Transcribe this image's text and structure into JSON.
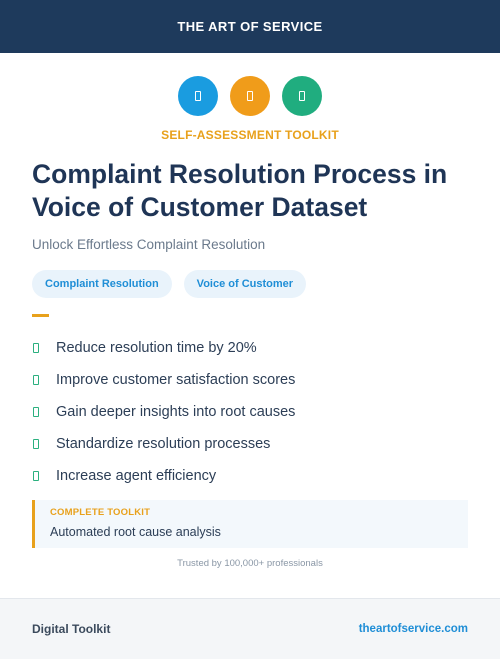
{
  "header": {
    "brand": "THE ART OF SERVICE"
  },
  "icons": [
    {
      "name": "document-icon",
      "color": "#1a9ce0"
    },
    {
      "name": "document-icon",
      "color": "#f09c1a"
    },
    {
      "name": "document-icon",
      "color": "#20ad7f"
    }
  ],
  "eyebrow": "SELF-ASSESSMENT TOOLKIT",
  "title": "Complaint Resolution Process in Voice of Customer Dataset",
  "subtitle": "Unlock Effortless Complaint Resolution",
  "tags": [
    "Complaint Resolution",
    "Voice of Customer"
  ],
  "benefits": [
    "Reduce resolution time by 20%",
    "Improve customer satisfaction scores",
    "Gain deeper insights into root causes",
    "Standardize resolution processes",
    "Increase agent efficiency"
  ],
  "toolkit": {
    "label": "COMPLETE TOOLKIT",
    "item": "Automated root cause analysis"
  },
  "trusted": "Trusted by 100,000+ professionals",
  "footer": {
    "left": "Digital Toolkit",
    "right": "theartofservice.com"
  }
}
